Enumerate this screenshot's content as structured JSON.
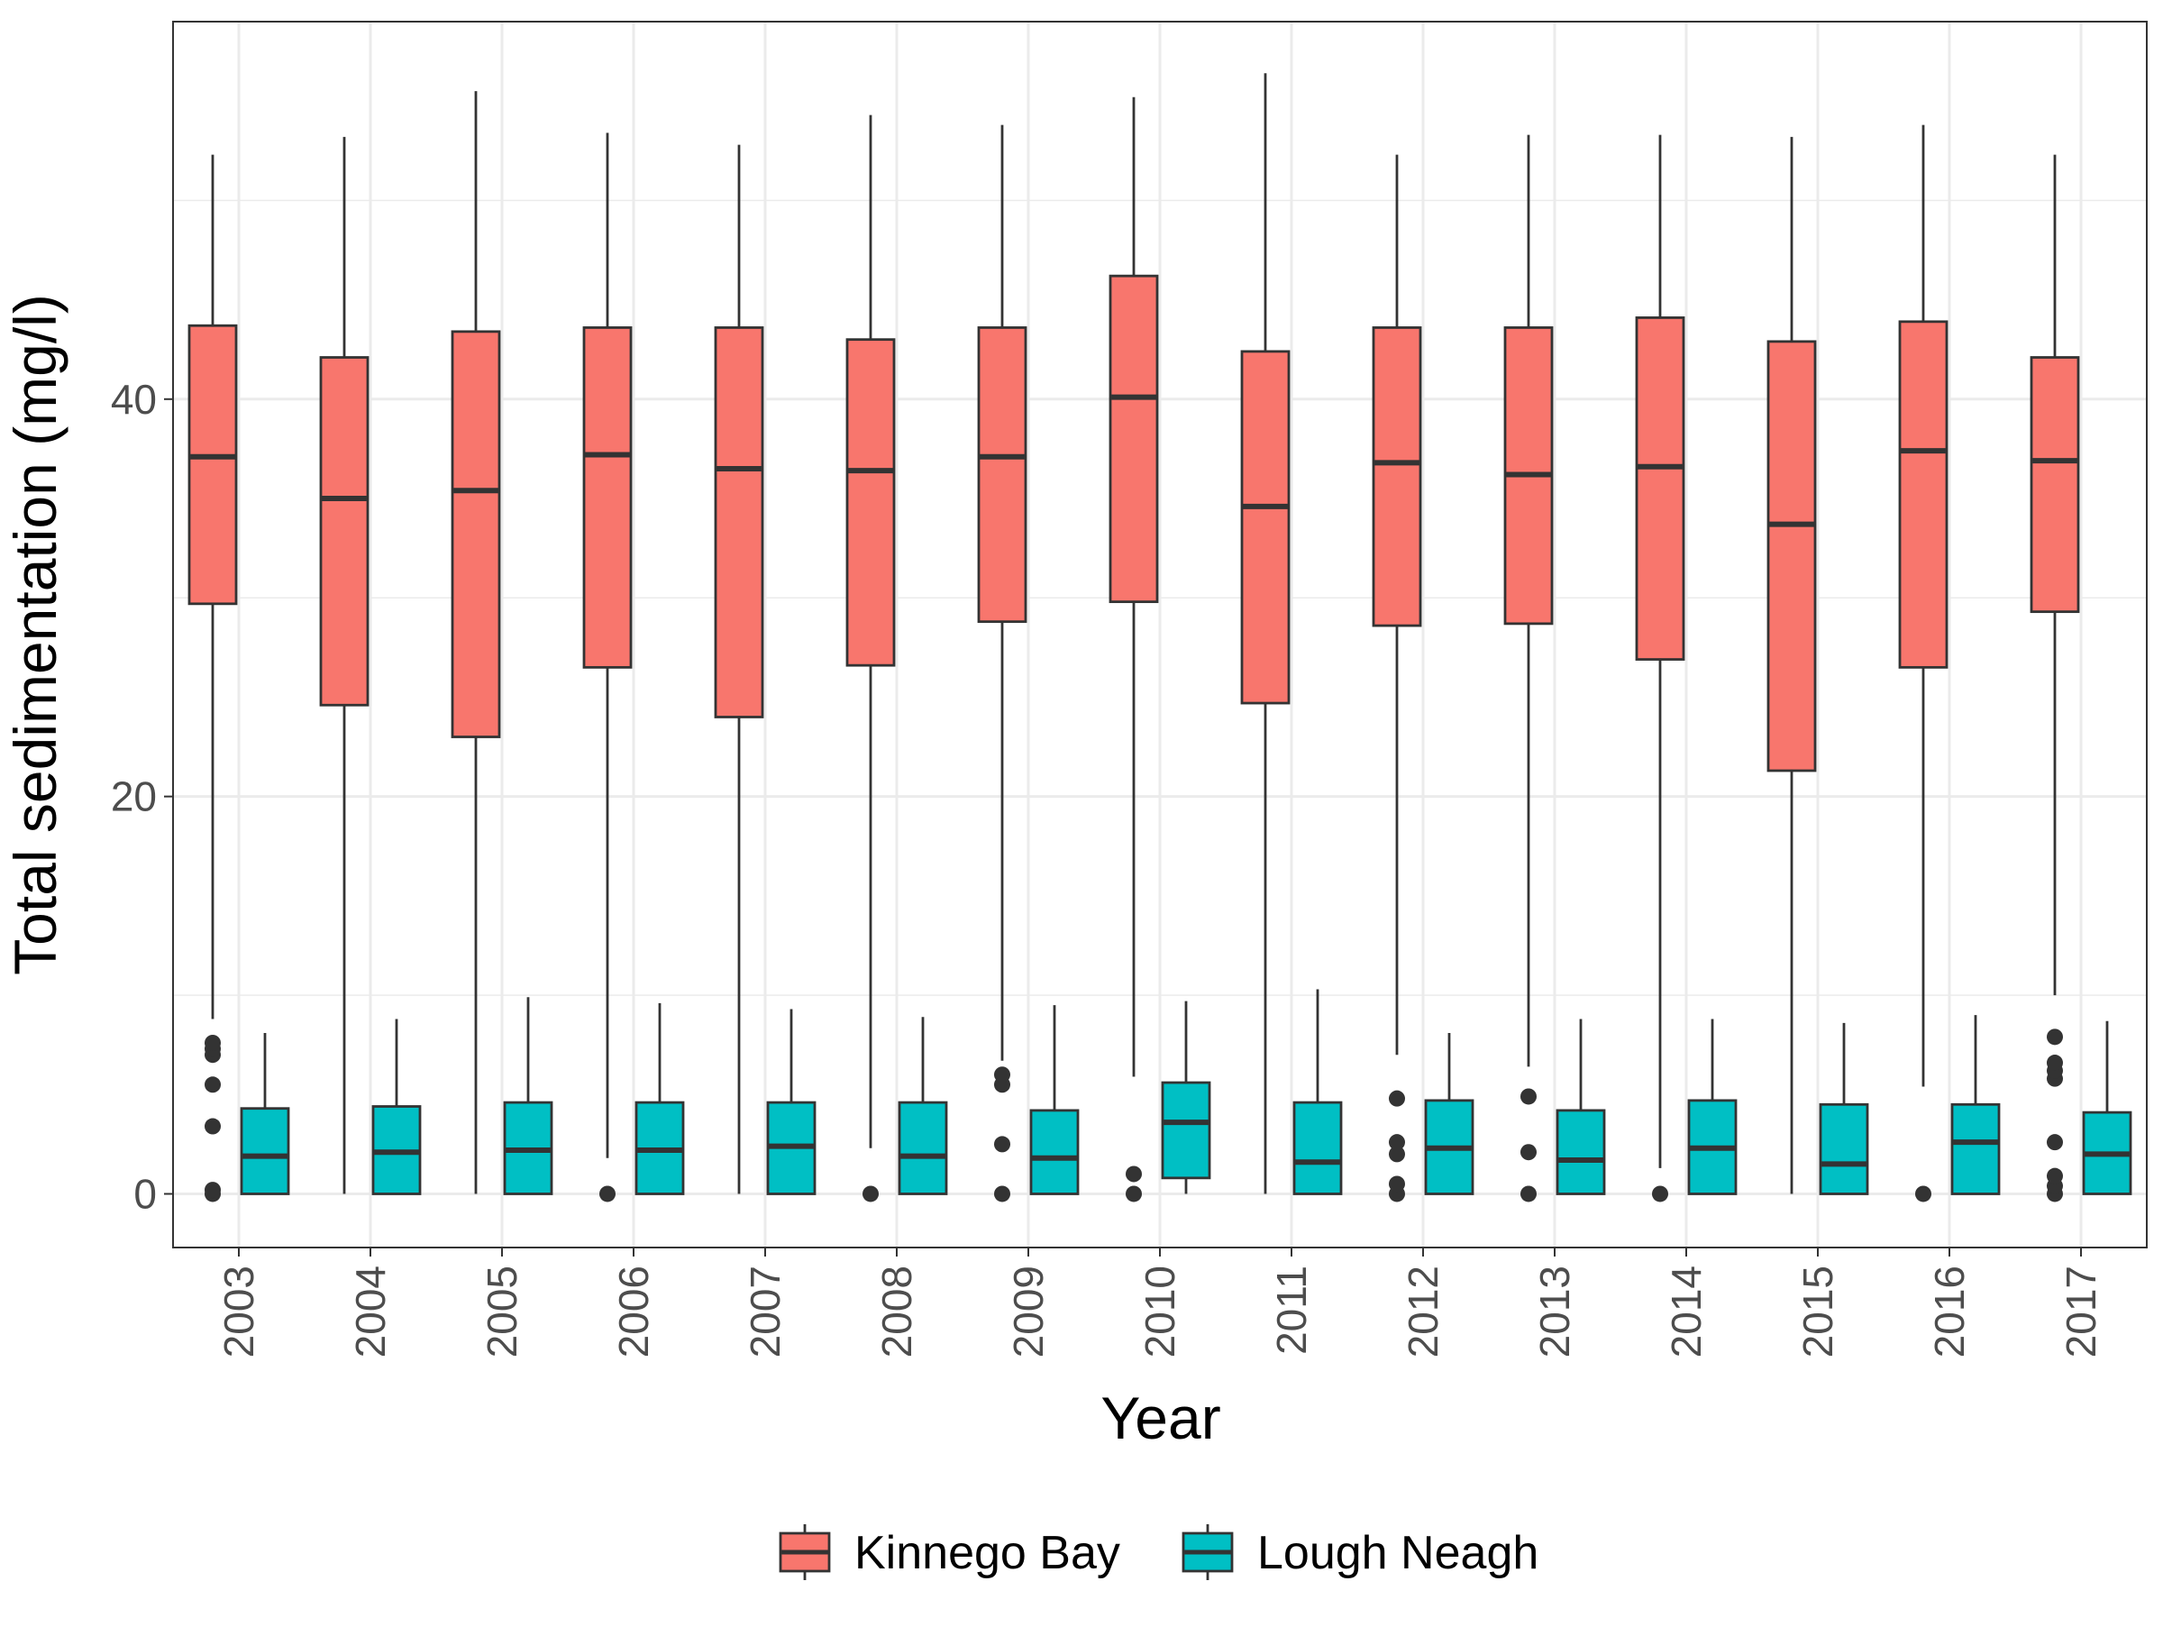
{
  "chart_data": {
    "type": "boxplot",
    "xlabel": "Year",
    "ylabel": "Total sedimentation (mg/l)",
    "ylim": [
      -2.7,
      59
    ],
    "y_ticks": [
      0,
      20,
      40
    ],
    "grid": true,
    "legend_position": "bottom",
    "categories": [
      "2003",
      "2004",
      "2005",
      "2006",
      "2007",
      "2008",
      "2009",
      "2010",
      "2011",
      "2012",
      "2013",
      "2014",
      "2015",
      "2016",
      "2017"
    ],
    "series": [
      {
        "name": "Kinnego Bay",
        "color": "#F8766D",
        "boxes": [
          {
            "low": 8.8,
            "q1": 29.7,
            "median": 37.1,
            "q3": 43.7,
            "high": 52.3,
            "outliers": [
              0,
              0.2,
              3.4,
              5.5,
              7.0,
              7.3,
              7.6
            ]
          },
          {
            "low": 0,
            "q1": 24.6,
            "median": 35.0,
            "q3": 42.1,
            "high": 53.2,
            "outliers": []
          },
          {
            "low": 0,
            "q1": 23.0,
            "median": 35.4,
            "q3": 43.4,
            "high": 55.5,
            "outliers": []
          },
          {
            "low": 1.8,
            "q1": 26.5,
            "median": 37.2,
            "q3": 43.6,
            "high": 53.4,
            "outliers": [
              0
            ]
          },
          {
            "low": 0,
            "q1": 24.0,
            "median": 36.5,
            "q3": 43.6,
            "high": 52.8,
            "outliers": []
          },
          {
            "low": 2.3,
            "q1": 26.6,
            "median": 36.4,
            "q3": 43.0,
            "high": 54.3,
            "outliers": [
              0
            ]
          },
          {
            "low": 6.7,
            "q1": 28.8,
            "median": 37.1,
            "q3": 43.6,
            "high": 53.8,
            "outliers": [
              0,
              2.5,
              5.5,
              6.0
            ]
          },
          {
            "low": 5.9,
            "q1": 29.8,
            "median": 40.1,
            "q3": 46.2,
            "high": 55.2,
            "outliers": [
              0,
              1.0
            ]
          },
          {
            "low": 0,
            "q1": 24.7,
            "median": 34.6,
            "q3": 42.4,
            "high": 56.4,
            "outliers": []
          },
          {
            "low": 7.0,
            "q1": 28.6,
            "median": 36.8,
            "q3": 43.6,
            "high": 52.3,
            "outliers": [
              0,
              0.5,
              2.0,
              2.6,
              4.8
            ]
          },
          {
            "low": 6.4,
            "q1": 28.7,
            "median": 36.2,
            "q3": 43.6,
            "high": 53.3,
            "outliers": [
              0,
              2.1,
              4.9
            ]
          },
          {
            "low": 1.3,
            "q1": 26.9,
            "median": 36.6,
            "q3": 44.1,
            "high": 53.3,
            "outliers": [
              0
            ]
          },
          {
            "low": 0,
            "q1": 21.3,
            "median": 33.7,
            "q3": 42.9,
            "high": 53.2,
            "outliers": []
          },
          {
            "low": 5.4,
            "q1": 26.5,
            "median": 37.4,
            "q3": 43.9,
            "high": 53.8,
            "outliers": [
              0
            ]
          },
          {
            "low": 10.0,
            "q1": 29.3,
            "median": 36.9,
            "q3": 42.1,
            "high": 52.3,
            "outliers": [
              0,
              0.4,
              0.9,
              2.6,
              5.8,
              6.2,
              6.6,
              7.9
            ]
          }
        ]
      },
      {
        "name": "Lough Neagh",
        "color": "#00BFC4",
        "boxes": [
          {
            "low": 0,
            "q1": 0,
            "median": 1.9,
            "q3": 4.3,
            "high": 8.1,
            "outliers": []
          },
          {
            "low": 0,
            "q1": 0,
            "median": 2.1,
            "q3": 4.4,
            "high": 8.8,
            "outliers": []
          },
          {
            "low": 0,
            "q1": 0,
            "median": 2.2,
            "q3": 4.6,
            "high": 9.9,
            "outliers": []
          },
          {
            "low": 0,
            "q1": 0,
            "median": 2.2,
            "q3": 4.6,
            "high": 9.6,
            "outliers": []
          },
          {
            "low": 0,
            "q1": 0,
            "median": 2.4,
            "q3": 4.6,
            "high": 9.3,
            "outliers": []
          },
          {
            "low": 0,
            "q1": 0,
            "median": 1.9,
            "q3": 4.6,
            "high": 8.9,
            "outliers": []
          },
          {
            "low": 0,
            "q1": 0,
            "median": 1.8,
            "q3": 4.2,
            "high": 9.5,
            "outliers": []
          },
          {
            "low": 0,
            "q1": 0.8,
            "median": 3.6,
            "q3": 5.6,
            "high": 9.7,
            "outliers": []
          },
          {
            "low": 0,
            "q1": 0,
            "median": 1.6,
            "q3": 4.6,
            "high": 10.3,
            "outliers": []
          },
          {
            "low": 0,
            "q1": 0,
            "median": 2.3,
            "q3": 4.7,
            "high": 8.1,
            "outliers": []
          },
          {
            "low": 0,
            "q1": 0,
            "median": 1.7,
            "q3": 4.2,
            "high": 8.8,
            "outliers": []
          },
          {
            "low": 0,
            "q1": 0,
            "median": 2.3,
            "q3": 4.7,
            "high": 8.8,
            "outliers": []
          },
          {
            "low": 0,
            "q1": 0,
            "median": 1.5,
            "q3": 4.5,
            "high": 8.6,
            "outliers": []
          },
          {
            "low": 0,
            "q1": 0,
            "median": 2.6,
            "q3": 4.5,
            "high": 9.0,
            "outliers": []
          },
          {
            "low": 0,
            "q1": 0,
            "median": 2.0,
            "q3": 4.1,
            "high": 8.7,
            "outliers": []
          }
        ]
      }
    ]
  }
}
